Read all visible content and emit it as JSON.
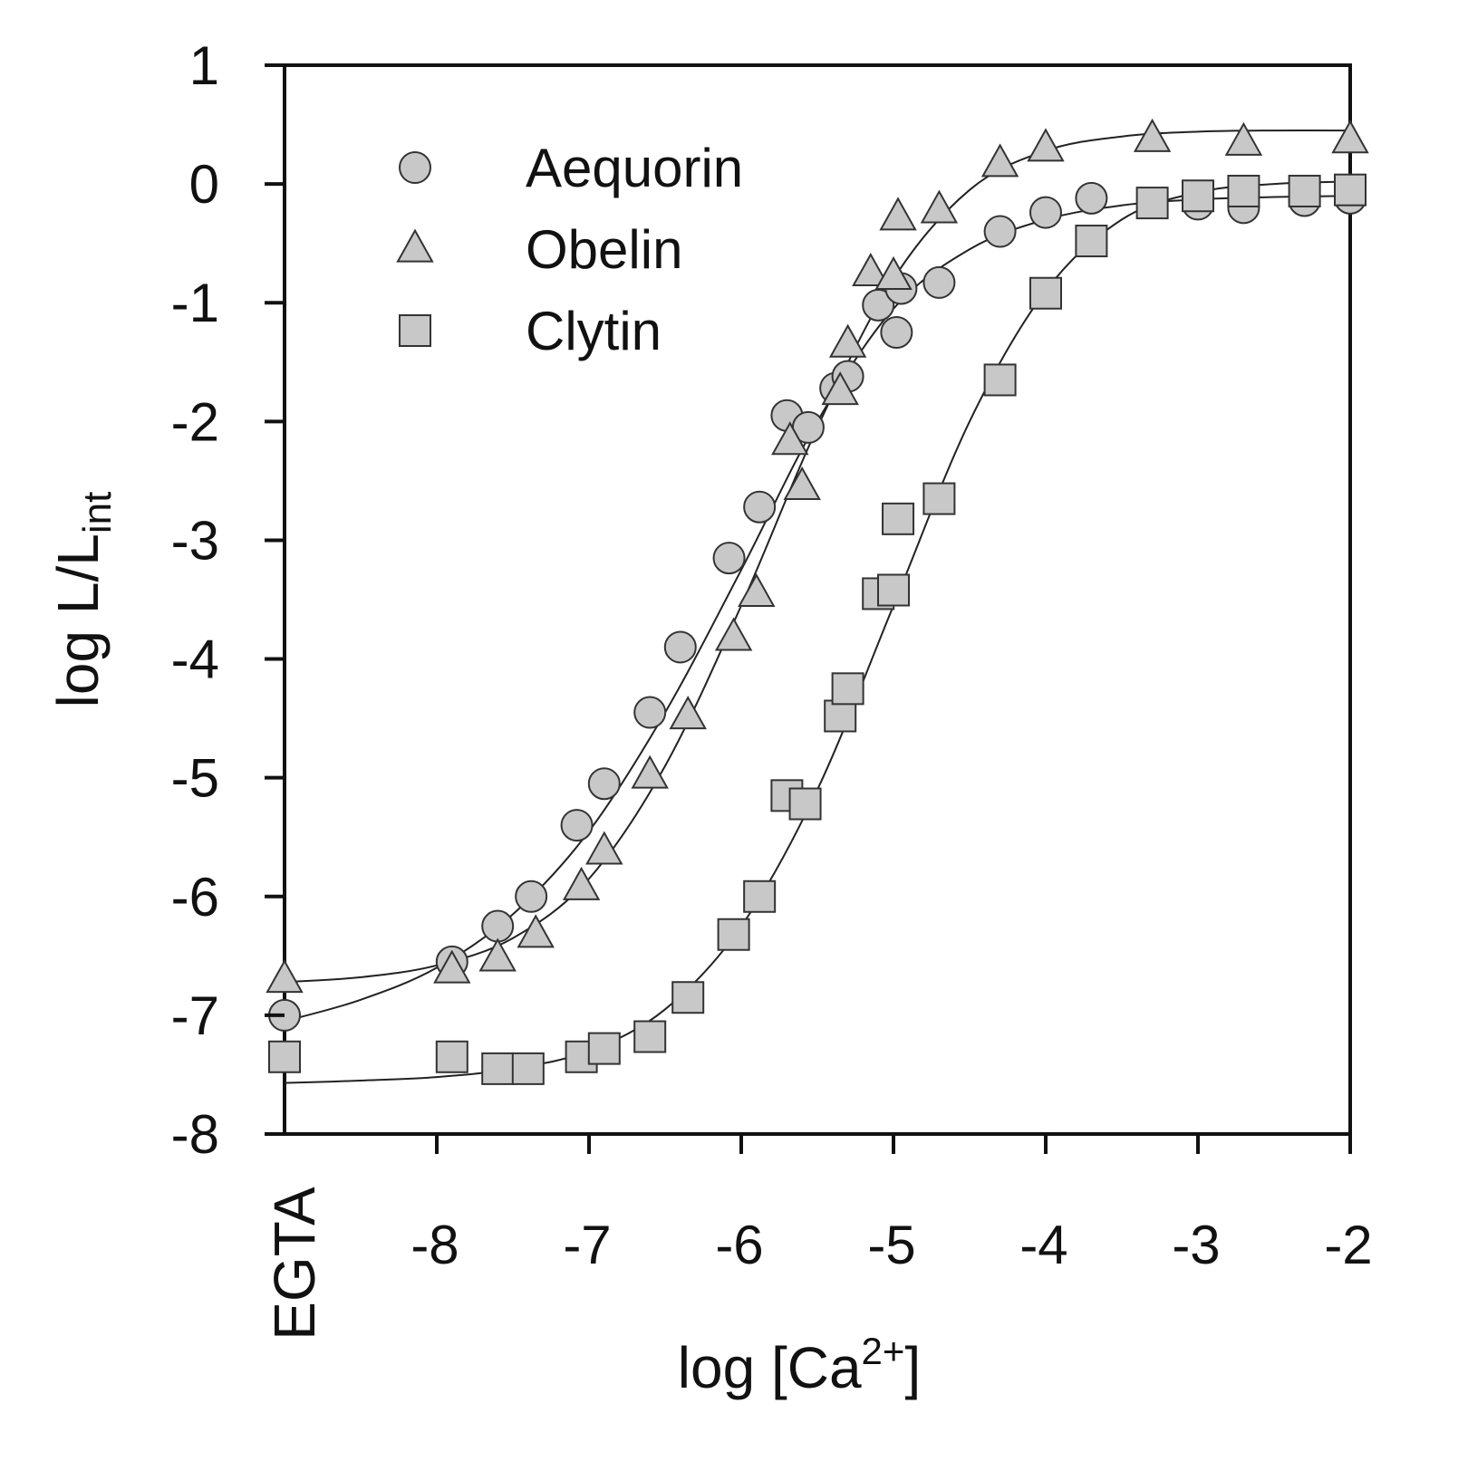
{
  "chart_data": {
    "type": "scatter",
    "title": "",
    "xlabel": "log [Ca²⁺]",
    "xlabel_parts": {
      "prefix": "log [Ca",
      "sup": "2+",
      "suffix": "]"
    },
    "ylabel": "log L/Lint",
    "ylabel_parts": {
      "main": "log L/L",
      "sub": "int"
    },
    "xlim": [
      -9.0,
      -2.0
    ],
    "ylim": [
      -8,
      1
    ],
    "x_ticks": [
      -8,
      -7,
      -6,
      -5,
      -4,
      -3,
      -2
    ],
    "x_tick_labels": [
      "-8",
      "-7",
      "-6",
      "-5",
      "-4",
      "-3",
      "-2"
    ],
    "x_special_label": "EGTA",
    "y_ticks": [
      1,
      0,
      -1,
      -2,
      -3,
      -4,
      -5,
      -6,
      -7,
      -8
    ],
    "y_tick_labels": [
      "1",
      "0",
      "-1",
      "-2",
      "-3",
      "-4",
      "-5",
      "-6",
      "-7",
      "-8"
    ],
    "grid": false,
    "legend_position": "top-left",
    "marker_fill": "#c8c8c8",
    "marker_stroke": "#333333",
    "curve_color": "#222222",
    "series": [
      {
        "name": "Aequorin",
        "marker": "circle",
        "points": [
          [
            -9.0,
            -7.0
          ],
          [
            -7.9,
            -6.55
          ],
          [
            -7.6,
            -6.25
          ],
          [
            -7.38,
            -6.0
          ],
          [
            -7.08,
            -5.4
          ],
          [
            -6.9,
            -5.05
          ],
          [
            -6.6,
            -4.45
          ],
          [
            -6.4,
            -3.9
          ],
          [
            -6.08,
            -3.15
          ],
          [
            -5.88,
            -2.72
          ],
          [
            -5.7,
            -1.95
          ],
          [
            -5.56,
            -2.05
          ],
          [
            -5.38,
            -1.72
          ],
          [
            -5.3,
            -1.62
          ],
          [
            -5.1,
            -1.02
          ],
          [
            -4.98,
            -1.25
          ],
          [
            -4.95,
            -0.88
          ],
          [
            -4.7,
            -0.83
          ],
          [
            -4.3,
            -0.4
          ],
          [
            -4.0,
            -0.24
          ],
          [
            -3.7,
            -0.12
          ],
          [
            -3.0,
            -0.17
          ],
          [
            -2.7,
            -0.2
          ],
          [
            -2.3,
            -0.14
          ],
          [
            -2.0,
            -0.12
          ]
        ],
        "curve": [
          [
            -9.0,
            -7.05
          ],
          [
            -8.5,
            -6.87
          ],
          [
            -8.0,
            -6.6
          ],
          [
            -7.5,
            -6.15
          ],
          [
            -7.0,
            -5.45
          ],
          [
            -6.5,
            -4.45
          ],
          [
            -6.0,
            -3.25
          ],
          [
            -5.5,
            -2.0
          ],
          [
            -5.0,
            -1.05
          ],
          [
            -4.5,
            -0.55
          ],
          [
            -4.0,
            -0.3
          ],
          [
            -3.5,
            -0.18
          ],
          [
            -3.0,
            -0.13
          ],
          [
            -2.5,
            -0.11
          ],
          [
            -2.0,
            -0.1
          ]
        ]
      },
      {
        "name": "Obelin",
        "marker": "triangle",
        "points": [
          [
            -9.0,
            -6.7
          ],
          [
            -7.9,
            -6.62
          ],
          [
            -7.6,
            -6.52
          ],
          [
            -7.35,
            -6.32
          ],
          [
            -7.05,
            -5.92
          ],
          [
            -6.9,
            -5.62
          ],
          [
            -6.6,
            -4.98
          ],
          [
            -6.35,
            -4.48
          ],
          [
            -6.05,
            -3.82
          ],
          [
            -5.9,
            -3.45
          ],
          [
            -5.68,
            -2.17
          ],
          [
            -5.6,
            -2.55
          ],
          [
            -5.35,
            -1.75
          ],
          [
            -5.3,
            -1.35
          ],
          [
            -5.15,
            -0.75
          ],
          [
            -5.0,
            -0.78
          ],
          [
            -4.97,
            -0.28
          ],
          [
            -4.7,
            -0.22
          ],
          [
            -4.3,
            0.17
          ],
          [
            -4.0,
            0.3
          ],
          [
            -3.3,
            0.38
          ],
          [
            -2.7,
            0.35
          ],
          [
            -2.0,
            0.37
          ]
        ],
        "curve": [
          [
            -9.0,
            -6.72
          ],
          [
            -8.5,
            -6.68
          ],
          [
            -8.0,
            -6.58
          ],
          [
            -7.5,
            -6.35
          ],
          [
            -7.0,
            -5.85
          ],
          [
            -6.5,
            -4.9
          ],
          [
            -6.0,
            -3.55
          ],
          [
            -5.5,
            -2.05
          ],
          [
            -5.0,
            -0.8
          ],
          [
            -4.5,
            -0.05
          ],
          [
            -4.0,
            0.28
          ],
          [
            -3.5,
            0.4
          ],
          [
            -3.0,
            0.44
          ],
          [
            -2.5,
            0.45
          ],
          [
            -2.0,
            0.45
          ]
        ]
      },
      {
        "name": "Clytin",
        "marker": "square",
        "points": [
          [
            -9.0,
            -7.35
          ],
          [
            -7.9,
            -7.35
          ],
          [
            -7.6,
            -7.45
          ],
          [
            -7.4,
            -7.45
          ],
          [
            -7.05,
            -7.35
          ],
          [
            -6.9,
            -7.28
          ],
          [
            -6.6,
            -7.18
          ],
          [
            -6.35,
            -6.85
          ],
          [
            -6.05,
            -6.32
          ],
          [
            -5.88,
            -6.0
          ],
          [
            -5.7,
            -5.15
          ],
          [
            -5.58,
            -5.22
          ],
          [
            -5.35,
            -4.48
          ],
          [
            -5.3,
            -4.25
          ],
          [
            -5.1,
            -3.45
          ],
          [
            -5.0,
            -3.42
          ],
          [
            -4.97,
            -2.82
          ],
          [
            -4.7,
            -2.65
          ],
          [
            -4.3,
            -1.65
          ],
          [
            -4.0,
            -0.92
          ],
          [
            -3.7,
            -0.48
          ],
          [
            -3.3,
            -0.16
          ],
          [
            -3.0,
            -0.1
          ],
          [
            -2.7,
            -0.06
          ],
          [
            -2.3,
            -0.06
          ],
          [
            -2.0,
            -0.05
          ]
        ],
        "curve": [
          [
            -9.0,
            -7.57
          ],
          [
            -8.5,
            -7.55
          ],
          [
            -8.0,
            -7.52
          ],
          [
            -7.5,
            -7.45
          ],
          [
            -7.0,
            -7.3
          ],
          [
            -6.5,
            -6.95
          ],
          [
            -6.0,
            -6.25
          ],
          [
            -5.5,
            -5.1
          ],
          [
            -5.0,
            -3.55
          ],
          [
            -4.5,
            -2.0
          ],
          [
            -4.0,
            -0.9
          ],
          [
            -3.5,
            -0.3
          ],
          [
            -3.0,
            -0.07
          ],
          [
            -2.5,
            0.0
          ],
          [
            -2.0,
            0.02
          ]
        ]
      }
    ]
  }
}
